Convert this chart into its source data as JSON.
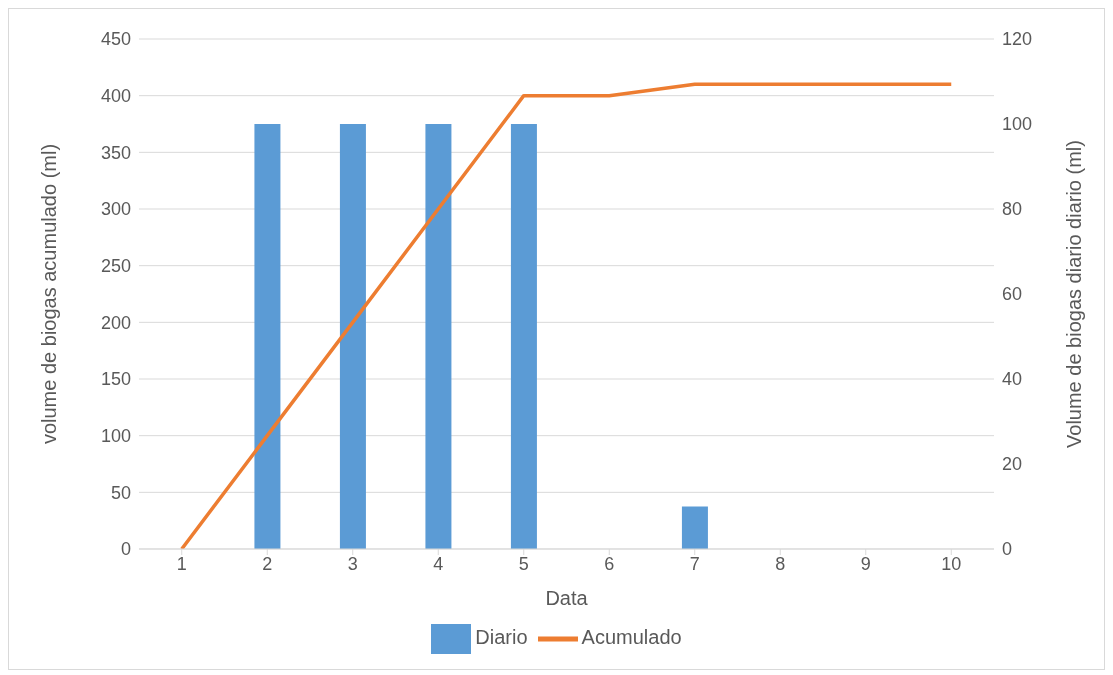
{
  "chart_data": {
    "type": "bar",
    "xlabel": "Data",
    "ylabel": "volume de biogas acumulado (ml)",
    "y2label": "Volume de biogas diario  diario (ml)",
    "categories": [
      "1",
      "2",
      "3",
      "4",
      "5",
      "6",
      "7",
      "8",
      "9",
      "10"
    ],
    "series": [
      {
        "name": "Diario",
        "axis": "y2",
        "color": "#5b9bd5",
        "values": [
          0,
          100,
          100,
          100,
          100,
          0,
          10,
          0,
          0,
          0
        ]
      },
      {
        "name": "Acumulado",
        "type": "line",
        "axis": "y",
        "color": "#ed7d31",
        "values": [
          0,
          100,
          200,
          300,
          400,
          400,
          410,
          410,
          410,
          410
        ]
      }
    ],
    "ylim": [
      0,
      450
    ],
    "yticks": [
      0,
      50,
      100,
      150,
      200,
      250,
      300,
      350,
      400,
      450
    ],
    "y2lim": [
      0,
      120
    ],
    "y2ticks": [
      0,
      20,
      40,
      60,
      80,
      100,
      120
    ],
    "grid": "y",
    "legend": "bottom",
    "marker": "none",
    "line_style": "solid"
  }
}
